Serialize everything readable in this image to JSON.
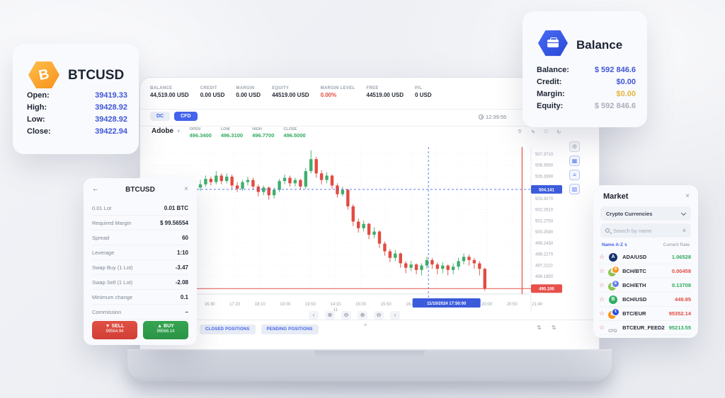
{
  "ohlc_card": {
    "symbol": "BTCUSD",
    "coin_glyph": "B",
    "rows": [
      {
        "label": "Open:",
        "value": "39419.33"
      },
      {
        "label": "High:",
        "value": "39428.92"
      },
      {
        "label": "Low:",
        "value": "39428.92"
      },
      {
        "label": "Close:",
        "value": "39422.94"
      }
    ]
  },
  "balance_card": {
    "title": "Balance",
    "rows": [
      {
        "label": "Balance:",
        "value": "$ 592 846.6",
        "color": "blue"
      },
      {
        "label": "Credit:",
        "value": "$0.00",
        "color": "blue"
      },
      {
        "label": "Margin:",
        "value": "$0.00",
        "color": "gold"
      },
      {
        "label": "Equity:",
        "value": "$ 592 846.6",
        "color": "gray"
      }
    ]
  },
  "symbol_panel": {
    "back_glyph": "←",
    "title": "BTCUSD",
    "close_glyph": "×",
    "rows": [
      {
        "label": "0.01 Lot",
        "value": "0.01 BTC"
      },
      {
        "label": "Required Margin",
        "value": "$ 99.56554"
      },
      {
        "label": "Spread",
        "value": "60"
      },
      {
        "label": "Leverage",
        "value": "1:10"
      },
      {
        "label": "Swap Buy (1 Lot)",
        "value": "-3.47"
      },
      {
        "label": "Swap Sell (1 Lot)",
        "value": "-2.08"
      },
      {
        "label": "Minimum change",
        "value": "0.1"
      },
      {
        "label": "Commission",
        "value": "–"
      }
    ],
    "sell": {
      "arrow": "▼",
      "label": "SELL",
      "price": "99564.94"
    },
    "buy": {
      "arrow": "▲",
      "label": "BUY",
      "price": "99566.14"
    }
  },
  "terminal": {
    "stats": [
      {
        "label": "BALANCE",
        "value": "44,519.00 USD"
      },
      {
        "label": "CREDIT",
        "value": "0.00 USD"
      },
      {
        "label": "MARGIN",
        "value": "0.00 USD"
      },
      {
        "label": "EQUITY",
        "value": "44519.00 USD"
      },
      {
        "label": "MARGIN LEVEL",
        "value": "0.00%",
        "color": "red"
      },
      {
        "label": "FREE",
        "value": "44519.00 USD"
      },
      {
        "label": "P/L",
        "value": "0 USD"
      }
    ],
    "account_types": [
      {
        "label": "DC",
        "active": false
      },
      {
        "label": "CFD",
        "active": true
      }
    ],
    "clock": "12:39:55",
    "symbol_bar": {
      "name": "Adobe",
      "chevron": "∨",
      "quotes": [
        {
          "label": "OPEN",
          "value": "496.3400"
        },
        {
          "label": "LOW",
          "value": "496.3100"
        },
        {
          "label": "HIGH",
          "value": "496.7700"
        },
        {
          "label": "CLOSE",
          "value": "496.5000"
        }
      ]
    },
    "chart_tools": [
      "5'",
      "✎",
      "□",
      "↻"
    ],
    "side_tools": [
      "⚙",
      "▦",
      "≡",
      "▥"
    ],
    "nav_glyphs": [
      "‹",
      "⊕",
      "⊖",
      "⊕",
      "⊖",
      "›"
    ],
    "handle_glyph": "≡",
    "positions_tabs": [
      "CLOSED POSITIONS",
      "PENDING POSITIONS"
    ],
    "scale_icons": [
      "⇅",
      "⇅"
    ]
  },
  "market_panel": {
    "title": "Market",
    "close_glyph": "×",
    "category": "Crypto Currencies",
    "search_placeholder": "Search by name",
    "search_clear_glyph": "×",
    "star_glyph": "☆",
    "columns": {
      "name": "Name A-Z",
      "sort_glyph": "⇅",
      "rate": "Current Rate"
    },
    "rows": [
      {
        "symbol": "ADA/USD",
        "rate": "1.06528",
        "dir": "up",
        "icon": {
          "type": "single",
          "bg": "#16306e",
          "glyph": "A"
        }
      },
      {
        "symbol": "BCH/BTC",
        "rate": "0.00458",
        "dir": "down",
        "icon": {
          "type": "dual",
          "back_bg": "#8dc351",
          "back_glyph": "B",
          "front_bg": "#f7931a",
          "front_glyph": "B"
        }
      },
      {
        "symbol": "BCH/ETH",
        "rate": "0.13708",
        "dir": "up",
        "icon": {
          "type": "dual",
          "back_bg": "#8dc351",
          "back_glyph": "B",
          "front_bg": "#627eea",
          "front_glyph": "E"
        }
      },
      {
        "symbol": "BCH/USD",
        "rate": "449.85",
        "dir": "down",
        "icon": {
          "type": "single",
          "bg": "#2fae62",
          "glyph": "B"
        }
      },
      {
        "symbol": "BTC/EUR",
        "rate": "95352.14",
        "dir": "down",
        "icon": {
          "type": "dual",
          "back_bg": "#f7931a",
          "back_glyph": "B",
          "front_bg": "#2b4fe0",
          "front_glyph": "€"
        }
      },
      {
        "symbol": "BTCEUR_FEED2",
        "rate": "95213.55",
        "dir": "up",
        "icon": {
          "type": "text",
          "text": "CFD"
        }
      }
    ]
  },
  "chart_data": {
    "type": "candlestick",
    "symbol": "Adobe CFD",
    "y_range": [
      494.6,
      508.0
    ],
    "y_tick_labels": [
      "507.3710",
      "506.3550",
      "505.3390",
      "504.3230",
      "503.3070",
      "502.2910",
      "501.2750",
      "500.2590",
      "499.2430",
      "498.2270",
      "497.2110",
      "496.1950"
    ],
    "y_tick_values": [
      507.371,
      506.355,
      505.339,
      504.323,
      503.307,
      502.291,
      501.275,
      500.259,
      499.243,
      498.227,
      497.211,
      496.195
    ],
    "x_ticks": [
      "16:30",
      "17:20",
      "18:10",
      "19:00",
      "19:50",
      "14:10",
      "15:00",
      "15:50",
      "16:40",
      "",
      "19:10",
      "20:00",
      "20:50",
      "21:40"
    ],
    "day_marker": {
      "tick_index": 5,
      "label": "11"
    },
    "crosshair": {
      "candle_index": 43.3,
      "price": 504.141,
      "price_label": "504.141",
      "time_label": "11/10/2024 17:50:00",
      "time_chip_tick": 9.4
    },
    "last_price": {
      "value": 495.1,
      "label": "495.100",
      "vline_tick": 12.4
    },
    "up_color": "#3fae6e",
    "down_color": "#e24b41",
    "candles": [
      [
        504.3,
        505.0,
        504.0,
        504.6
      ],
      [
        504.6,
        505.4,
        504.4,
        505.1
      ],
      [
        505.1,
        505.3,
        504.5,
        504.8
      ],
      [
        504.8,
        505.8,
        504.6,
        505.4
      ],
      [
        505.4,
        505.6,
        504.6,
        504.9
      ],
      [
        504.9,
        505.6,
        504.7,
        505.3
      ],
      [
        505.3,
        505.5,
        504.2,
        504.5
      ],
      [
        504.5,
        504.8,
        503.9,
        504.2
      ],
      [
        504.2,
        505.0,
        504.0,
        504.8
      ],
      [
        504.8,
        505.3,
        504.5,
        505.0
      ],
      [
        505.0,
        505.2,
        504.1,
        504.4
      ],
      [
        504.4,
        504.6,
        503.5,
        503.9
      ],
      [
        503.9,
        504.5,
        503.6,
        504.3
      ],
      [
        504.3,
        504.4,
        503.2,
        503.6
      ],
      [
        503.6,
        504.3,
        503.3,
        504.1
      ],
      [
        504.1,
        505.1,
        503.9,
        504.9
      ],
      [
        504.9,
        505.5,
        504.6,
        505.2
      ],
      [
        505.2,
        505.4,
        504.4,
        504.7
      ],
      [
        504.7,
        505.2,
        504.4,
        505.0
      ],
      [
        505.0,
        505.1,
        504.1,
        504.4
      ],
      [
        504.4,
        506.1,
        504.2,
        505.8
      ],
      [
        505.8,
        507.7,
        505.6,
        506.9
      ],
      [
        506.9,
        507.1,
        505.2,
        505.6
      ],
      [
        505.6,
        505.9,
        504.6,
        505.0
      ],
      [
        505.0,
        505.7,
        504.7,
        505.4
      ],
      [
        505.4,
        505.5,
        504.2,
        504.5
      ],
      [
        504.5,
        504.7,
        503.4,
        503.7
      ],
      [
        503.7,
        504.4,
        503.5,
        504.1
      ],
      [
        504.1,
        504.2,
        502.3,
        502.6
      ],
      [
        502.6,
        502.8,
        500.8,
        501.2
      ],
      [
        501.2,
        501.5,
        500.2,
        500.6
      ],
      [
        500.6,
        501.3,
        500.3,
        501.0
      ],
      [
        501.0,
        501.1,
        499.6,
        500.0
      ],
      [
        500.0,
        500.7,
        499.7,
        500.3
      ],
      [
        500.3,
        500.4,
        498.8,
        499.2
      ],
      [
        499.2,
        499.4,
        498.1,
        498.5
      ],
      [
        498.5,
        498.7,
        497.5,
        497.9
      ],
      [
        497.9,
        498.6,
        497.6,
        498.3
      ],
      [
        498.3,
        498.4,
        497.0,
        497.4
      ],
      [
        497.4,
        497.6,
        496.5,
        497.0
      ],
      [
        497.0,
        497.6,
        496.7,
        497.3
      ],
      [
        497.3,
        497.4,
        496.4,
        496.8
      ],
      [
        496.8,
        497.4,
        496.3,
        497.2
      ],
      [
        497.2,
        498.0,
        496.9,
        497.7
      ],
      [
        497.7,
        497.9,
        496.9,
        497.3
      ],
      [
        497.3,
        497.5,
        496.4,
        496.9
      ],
      [
        496.9,
        497.5,
        496.5,
        497.2
      ],
      [
        497.2,
        497.3,
        496.3,
        496.8
      ],
      [
        496.8,
        497.4,
        496.4,
        497.1
      ],
      [
        497.1,
        497.9,
        496.8,
        497.6
      ],
      [
        497.6,
        498.3,
        497.3,
        498.0
      ],
      [
        498.0,
        498.2,
        497.2,
        497.7
      ],
      [
        497.7,
        497.9,
        496.9,
        497.4
      ],
      [
        497.4,
        497.6,
        496.3,
        496.9
      ],
      [
        496.9,
        497.0,
        494.9,
        495.1
      ]
    ]
  }
}
